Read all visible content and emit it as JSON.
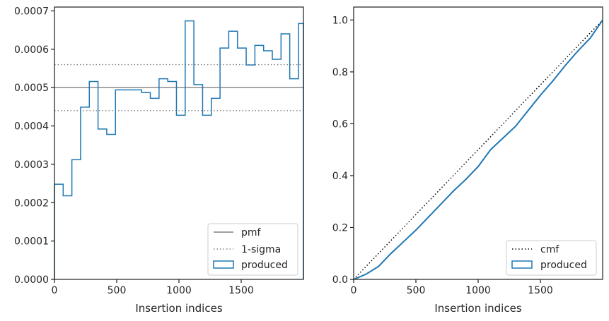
{
  "chart_data": [
    {
      "type": "histogram-step",
      "xlabel": "Insertion indices",
      "ylabel": "",
      "xlim": [
        0,
        2000
      ],
      "ylim": [
        0,
        0.00071
      ],
      "xticks": [
        0,
        500,
        1000,
        1500
      ],
      "xtick_labels": [
        "0",
        "500",
        "1000",
        "1500"
      ],
      "yticks": [
        0,
        0.0001,
        0.0002,
        0.0003,
        0.0004,
        0.0005,
        0.0006,
        0.0007
      ],
      "ytick_labels": [
        "0.0000",
        "0.0001",
        "0.0002",
        "0.0003",
        "0.0004",
        "0.0005",
        "0.0006",
        "0.0007"
      ],
      "bin_edges": [
        0,
        70,
        140,
        210,
        280,
        350,
        420,
        490,
        560,
        630,
        700,
        770,
        840,
        910,
        980,
        1050,
        1120,
        1190,
        1260,
        1330,
        1400,
        1470,
        1540,
        1610,
        1680,
        1750,
        1820,
        1890,
        1960,
        2000
      ],
      "series": [
        {
          "name": "produced",
          "color": "#1f77b4",
          "values": [
            0.000248,
            0.000218,
            0.000312,
            0.000449,
            0.000516,
            0.000392,
            0.000378,
            0.000494,
            0.000494,
            0.000494,
            0.000487,
            0.000472,
            0.000523,
            0.000516,
            0.000428,
            0.000674,
            0.000508,
            0.000428,
            0.000472,
            0.000603,
            0.000647,
            0.000603,
            0.000559,
            0.00061,
            0.000596,
            0.000574,
            0.00064,
            0.000523,
            0.000667
          ]
        }
      ],
      "reference_lines": [
        {
          "name": "pmf",
          "y": 0.0005,
          "style": "solid",
          "color": "#808080"
        },
        {
          "name": "1-sigma",
          "y": 0.00056,
          "style": "dotted",
          "color": "#808080"
        },
        {
          "name": "",
          "y": 0.00044,
          "style": "dotted",
          "color": "#808080"
        }
      ],
      "legend": {
        "placement": "lower right",
        "entries": [
          "pmf",
          "1-sigma",
          "produced"
        ]
      }
    },
    {
      "type": "line",
      "xlabel": "Insertion indices",
      "ylabel": "",
      "xlim": [
        0,
        2000
      ],
      "ylim": [
        0,
        1.05
      ],
      "xticks": [
        0,
        500,
        1000,
        1500
      ],
      "xtick_labels": [
        "0",
        "500",
        "1000",
        "1500"
      ],
      "yticks": [
        0,
        0.2,
        0.4,
        0.6,
        0.8,
        1.0
      ],
      "ytick_labels": [
        "0.0",
        "0.2",
        "0.4",
        "0.6",
        "0.8",
        "1.0"
      ],
      "series": [
        {
          "name": "cmf",
          "style": "dotted",
          "color": "#000000",
          "x": [
            0,
            2000
          ],
          "y": [
            0,
            1
          ]
        },
        {
          "name": "produced",
          "style": "solid",
          "color": "#1f77b4",
          "x": [
            0,
            100,
            200,
            300,
            400,
            500,
            600,
            700,
            800,
            900,
            1000,
            1100,
            1200,
            1300,
            1400,
            1500,
            1600,
            1700,
            1800,
            1900,
            2000
          ],
          "y": [
            0,
            0.02,
            0.05,
            0.1,
            0.145,
            0.19,
            0.24,
            0.29,
            0.34,
            0.385,
            0.435,
            0.5,
            0.545,
            0.59,
            0.65,
            0.71,
            0.765,
            0.825,
            0.88,
            0.93,
            1.0
          ]
        }
      ],
      "legend": {
        "placement": "lower right",
        "entries": [
          "cmf",
          "produced"
        ]
      }
    }
  ]
}
